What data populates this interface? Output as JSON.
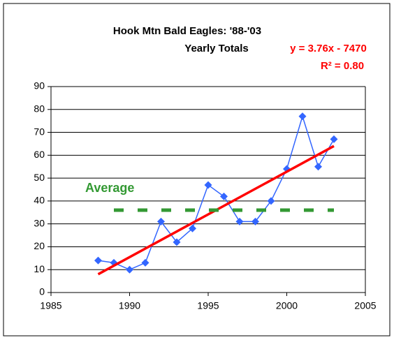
{
  "chart_data": {
    "type": "line",
    "title": "Hook Mtn Bald Eagles: '88-'03",
    "subtitle": "Yearly Totals",
    "x": [
      1988,
      1989,
      1990,
      1991,
      1992,
      1993,
      1994,
      1995,
      1996,
      1997,
      1998,
      1999,
      2000,
      2001,
      2002,
      2003
    ],
    "series": [
      {
        "name": "Yearly Totals",
        "color": "#3366ff",
        "marker": "diamond",
        "x": [
          1988,
          1989,
          1990,
          1991,
          1992,
          1993,
          1994,
          1995,
          1996,
          1997,
          1998,
          1999,
          2000,
          2001,
          2002,
          2003
        ],
        "values": [
          14,
          13,
          10,
          13,
          31,
          22,
          28,
          47,
          42,
          31,
          31,
          40,
          54,
          77,
          55,
          67
        ]
      },
      {
        "name": "Linear trend",
        "color": "#ff0000",
        "x": [
          1988,
          2003
        ],
        "values": [
          8,
          64
        ]
      },
      {
        "name": "Average",
        "color": "#339933",
        "dashed": true,
        "x": [
          1989,
          2003
        ],
        "values": [
          36,
          36
        ]
      }
    ],
    "annotations": [
      {
        "text": "y = 3.76x - 7470",
        "color": "#ff0000"
      },
      {
        "text": "R² = 0.80",
        "color": "#ff0000"
      },
      {
        "text": "Average",
        "color": "#339933"
      }
    ],
    "xlim": [
      1985,
      2005
    ],
    "xticks": [
      1985,
      1990,
      1995,
      2000,
      2005
    ],
    "ylim": [
      0,
      90
    ],
    "yticks": [
      0,
      10,
      20,
      30,
      40,
      50,
      60,
      70,
      80,
      90
    ],
    "grid": true
  }
}
